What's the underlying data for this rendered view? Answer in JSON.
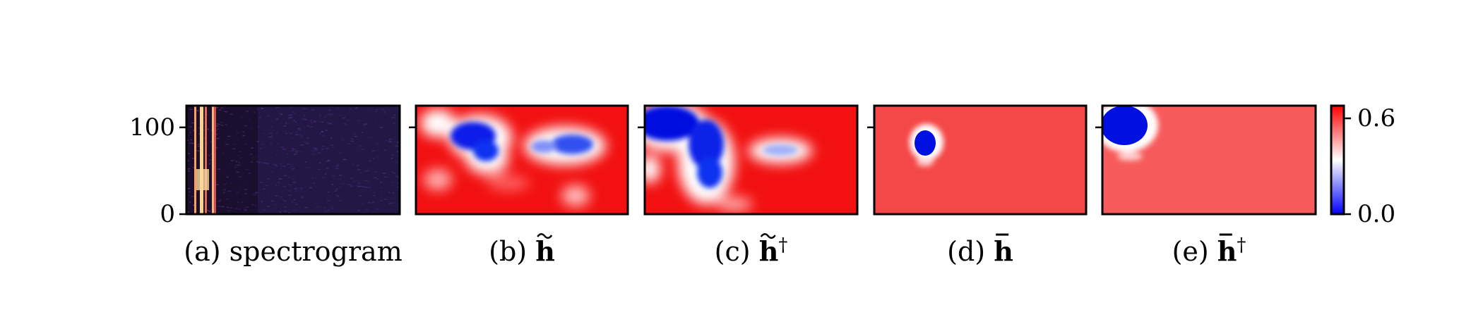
{
  "chart_data": {
    "type": "heatmap",
    "panel_count": 5,
    "y_axis": {
      "ticks": [
        {
          "value": 0,
          "label": "0"
        },
        {
          "value": 100,
          "label": "100"
        }
      ],
      "ylim": [
        0,
        125
      ]
    },
    "colorbar": {
      "colormap": "bwr",
      "range": [
        0.0,
        0.6
      ],
      "ticks": [
        {
          "value": 0.6,
          "label": "0.6"
        },
        {
          "value": 0.0,
          "label": "0.0"
        }
      ]
    },
    "panels": [
      {
        "id": "a",
        "prefix": "(a) ",
        "symbol": "",
        "sup": "",
        "suffix": "spectrogram",
        "kind": "spectrogram",
        "colormap": "magma"
      },
      {
        "id": "b",
        "prefix": "(b) ",
        "symbol": "h",
        "accent": "tilde",
        "sup": "",
        "suffix": "",
        "kind": "heatmap"
      },
      {
        "id": "c",
        "prefix": "(c) ",
        "symbol": "h",
        "accent": "tilde",
        "sup": "†",
        "suffix": "",
        "kind": "heatmap"
      },
      {
        "id": "d",
        "prefix": "(d) ",
        "symbol": "h",
        "accent": "bar",
        "sup": "",
        "suffix": "",
        "kind": "heatmap"
      },
      {
        "id": "e",
        "prefix": "(e) ",
        "symbol": "h",
        "accent": "bar",
        "sup": "†",
        "suffix": "",
        "kind": "heatmap"
      }
    ],
    "colors": {
      "high": "#ff0000",
      "mid": "#ffffff",
      "low": "#0000ff",
      "spectrogram_bg": "#1a0f2e",
      "spectrogram_hot": "#fbd38d"
    }
  }
}
